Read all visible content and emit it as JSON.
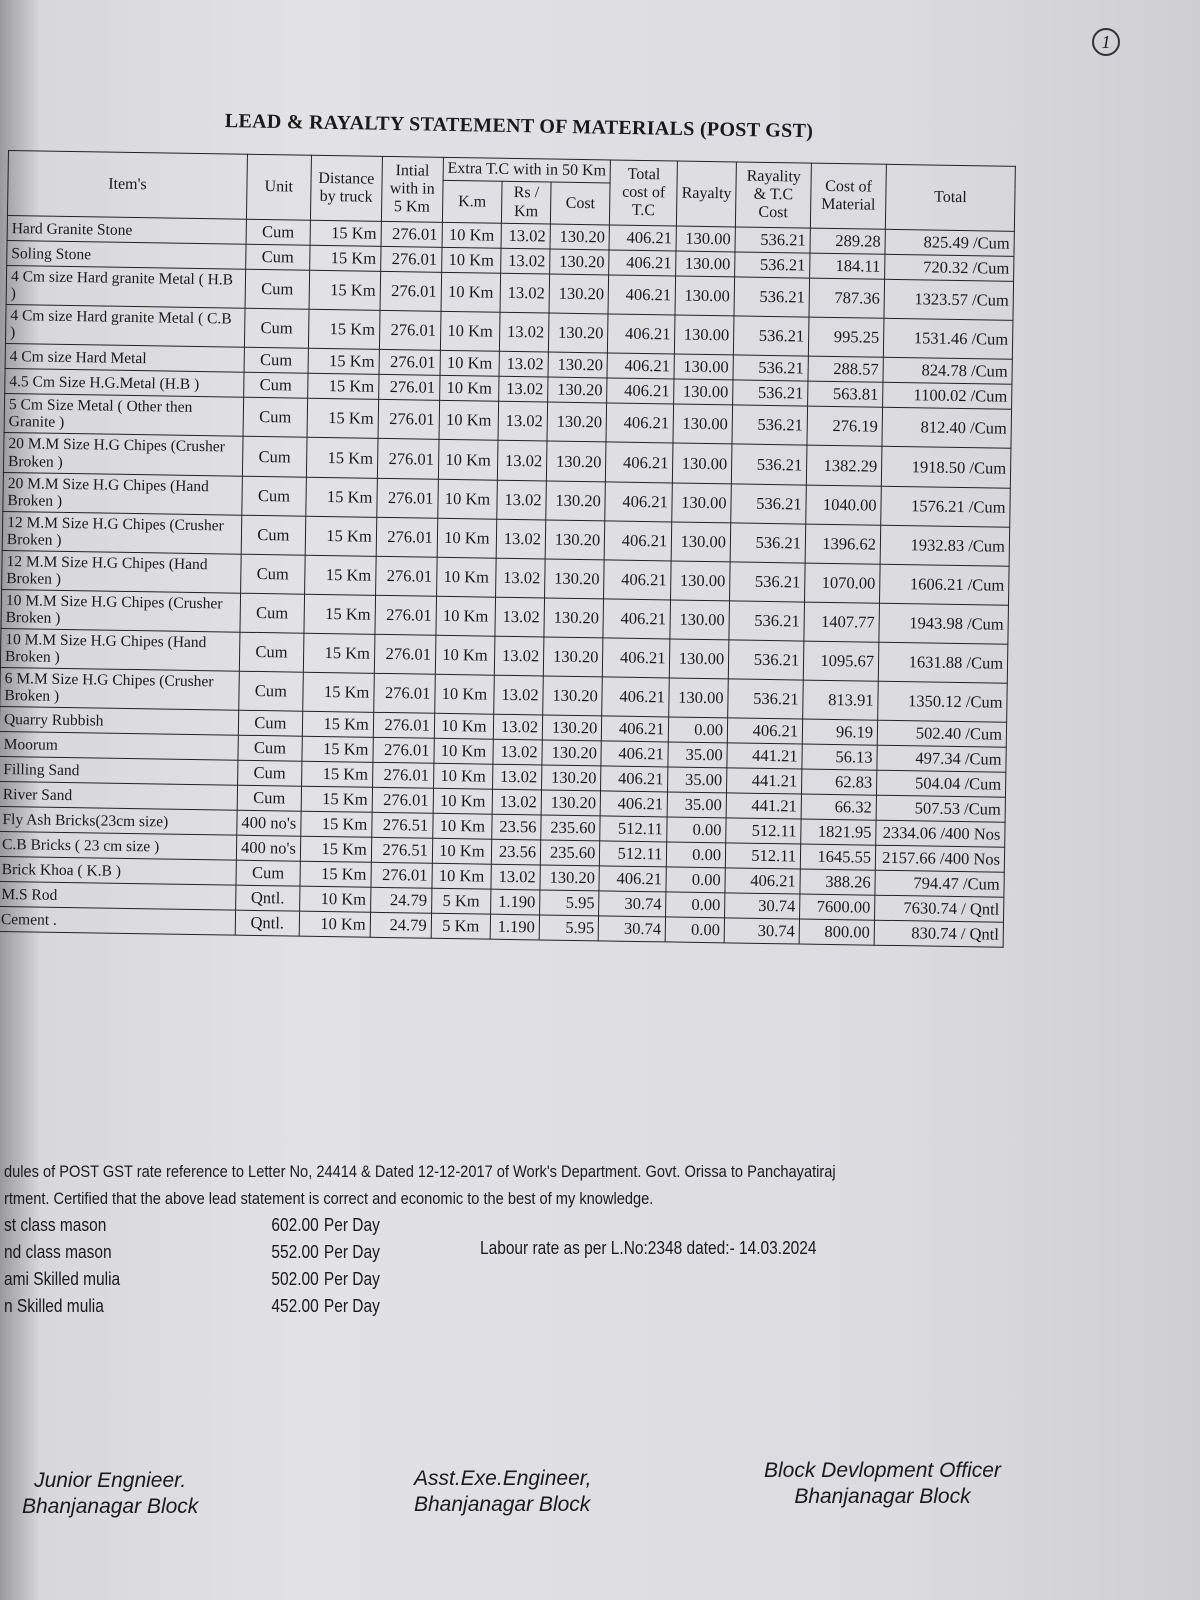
{
  "page_number": "1",
  "title": "LEAD & RAYALTY STATEMENT OF MATERIALS (POST GST)",
  "table": {
    "headers": {
      "items": "Item's",
      "unit": "Unit",
      "distance": "Distance by truck",
      "initial": "Intial with in 5 Km",
      "extra_tc": "Extra T.C with in 50 Km",
      "km": "K.m",
      "rs_km": "Rs / Km",
      "cost": "Cost",
      "total_tc": "Total cost of T.C",
      "rayalty": "Rayalty",
      "rayalty_tc": "Rayality & T.C Cost",
      "cost_material": "Cost of Material",
      "total": "Total"
    },
    "rows": [
      [
        "Hard Granite Stone",
        "Cum",
        "15 Km",
        "276.01",
        "10 Km",
        "13.02",
        "130.20",
        "406.21",
        "130.00",
        "536.21",
        "289.28",
        "825.49 /Cum"
      ],
      [
        "Soling Stone",
        "Cum",
        "15 Km",
        "276.01",
        "10 Km",
        "13.02",
        "130.20",
        "406.21",
        "130.00",
        "536.21",
        "184.11",
        "720.32 /Cum"
      ],
      [
        "4 Cm size Hard granite Metal ( H.B )",
        "Cum",
        "15 Km",
        "276.01",
        "10 Km",
        "13.02",
        "130.20",
        "406.21",
        "130.00",
        "536.21",
        "787.36",
        "1323.57 /Cum"
      ],
      [
        "4 Cm size Hard granite Metal ( C.B )",
        "Cum",
        "15 Km",
        "276.01",
        "10 Km",
        "13.02",
        "130.20",
        "406.21",
        "130.00",
        "536.21",
        "995.25",
        "1531.46 /Cum"
      ],
      [
        "4 Cm size Hard Metal",
        "Cum",
        "15 Km",
        "276.01",
        "10 Km",
        "13.02",
        "130.20",
        "406.21",
        "130.00",
        "536.21",
        "288.57",
        "824.78 /Cum"
      ],
      [
        "4.5 Cm Size H.G.Metal (H.B )",
        "Cum",
        "15 Km",
        "276.01",
        "10 Km",
        "13.02",
        "130.20",
        "406.21",
        "130.00",
        "536.21",
        "563.81",
        "1100.02 /Cum"
      ],
      [
        "5 Cm Size Metal ( Other then Granite )",
        "Cum",
        "15 Km",
        "276.01",
        "10 Km",
        "13.02",
        "130.20",
        "406.21",
        "130.00",
        "536.21",
        "276.19",
        "812.40 /Cum"
      ],
      [
        "20 M.M Size H.G Chipes (Crusher Broken )",
        "Cum",
        "15 Km",
        "276.01",
        "10 Km",
        "13.02",
        "130.20",
        "406.21",
        "130.00",
        "536.21",
        "1382.29",
        "1918.50 /Cum"
      ],
      [
        "20 M.M Size H.G Chipes (Hand Broken )",
        "Cum",
        "15 Km",
        "276.01",
        "10 Km",
        "13.02",
        "130.20",
        "406.21",
        "130.00",
        "536.21",
        "1040.00",
        "1576.21 /Cum"
      ],
      [
        "12 M.M Size H.G Chipes (Crusher Broken )",
        "Cum",
        "15 Km",
        "276.01",
        "10 Km",
        "13.02",
        "130.20",
        "406.21",
        "130.00",
        "536.21",
        "1396.62",
        "1932.83 /Cum"
      ],
      [
        "12 M.M Size H.G Chipes (Hand Broken )",
        "Cum",
        "15 Km",
        "276.01",
        "10 Km",
        "13.02",
        "130.20",
        "406.21",
        "130.00",
        "536.21",
        "1070.00",
        "1606.21 /Cum"
      ],
      [
        "10 M.M Size H.G Chipes (Crusher Broken )",
        "Cum",
        "15 Km",
        "276.01",
        "10 Km",
        "13.02",
        "130.20",
        "406.21",
        "130.00",
        "536.21",
        "1407.77",
        "1943.98 /Cum"
      ],
      [
        "10 M.M Size H.G Chipes (Hand Broken )",
        "Cum",
        "15 Km",
        "276.01",
        "10 Km",
        "13.02",
        "130.20",
        "406.21",
        "130.00",
        "536.21",
        "1095.67",
        "1631.88 /Cum"
      ],
      [
        "6 M.M Size H.G Chipes (Crusher Broken )",
        "Cum",
        "15 Km",
        "276.01",
        "10 Km",
        "13.02",
        "130.20",
        "406.21",
        "130.00",
        "536.21",
        "813.91",
        "1350.12 /Cum"
      ],
      [
        "Quarry Rubbish",
        "Cum",
        "15 Km",
        "276.01",
        "10 Km",
        "13.02",
        "130.20",
        "406.21",
        "0.00",
        "406.21",
        "96.19",
        "502.40 /Cum"
      ],
      [
        "Moorum",
        "Cum",
        "15 Km",
        "276.01",
        "10 Km",
        "13.02",
        "130.20",
        "406.21",
        "35.00",
        "441.21",
        "56.13",
        "497.34 /Cum"
      ],
      [
        "Filling Sand",
        "Cum",
        "15 Km",
        "276.01",
        "10 Km",
        "13.02",
        "130.20",
        "406.21",
        "35.00",
        "441.21",
        "62.83",
        "504.04 /Cum"
      ],
      [
        "River Sand",
        "Cum",
        "15 Km",
        "276.01",
        "10 Km",
        "13.02",
        "130.20",
        "406.21",
        "35.00",
        "441.21",
        "66.32",
        "507.53 /Cum"
      ],
      [
        "Fly Ash Bricks(23cm size)",
        "400 no's",
        "15 Km",
        "276.51",
        "10 Km",
        "23.56",
        "235.60",
        "512.11",
        "0.00",
        "512.11",
        "1821.95",
        "2334.06 /400 Nos"
      ],
      [
        "C.B Bricks ( 23 cm size )",
        "400 no's",
        "15 Km",
        "276.51",
        "10 Km",
        "23.56",
        "235.60",
        "512.11",
        "0.00",
        "512.11",
        "1645.55",
        "2157.66 /400 Nos"
      ],
      [
        "Brick Khoa ( K.B )",
        "Cum",
        "15 Km",
        "276.01",
        "10 Km",
        "13.02",
        "130.20",
        "406.21",
        "0.00",
        "406.21",
        "388.26",
        "794.47 /Cum"
      ],
      [
        "M.S Rod",
        "Qntl.",
        "10 Km",
        "24.79",
        "5 Km",
        "1.190",
        "5.95",
        "30.74",
        "0.00",
        "30.74",
        "7600.00",
        "7630.74 / Qntl"
      ],
      [
        "Cement .",
        "Qntl.",
        "10 Km",
        "24.79",
        "5 Km",
        "1.190",
        "5.95",
        "30.74",
        "0.00",
        "30.74",
        "800.00",
        "830.74 / Qntl"
      ]
    ]
  },
  "notes": [
    "dules of POST GST rate reference to Letter No, 24414 & Dated 12-12-2017 of Work's Department. Govt. Orissa to Panchayatiraj",
    "rtment. Certified that the above lead statement is correct and economic to the best of my knowledge."
  ],
  "labour": [
    {
      "name": "st class mason",
      "rate": "602.00",
      "unit": "Per Day"
    },
    {
      "name": "nd class mason",
      "rate": "552.00",
      "unit": "Per Day"
    },
    {
      "name": "ami Skilled mulia",
      "rate": "502.00",
      "unit": "Per Day"
    },
    {
      "name": "n Skilled mulia",
      "rate": "452.00",
      "unit": "Per Day"
    }
  ],
  "labour_reference": "Labour rate as per L.No:2348 dated:- 14.03.2024",
  "signatures": [
    {
      "title": "Junior Engnieer.",
      "place": "Bhanjanagar Block"
    },
    {
      "title": "Asst.Exe.Engineer,",
      "place": "Bhanjanagar Block"
    },
    {
      "title": "Block Devlopment Officer",
      "place": "Bhanjanagar Block"
    }
  ]
}
